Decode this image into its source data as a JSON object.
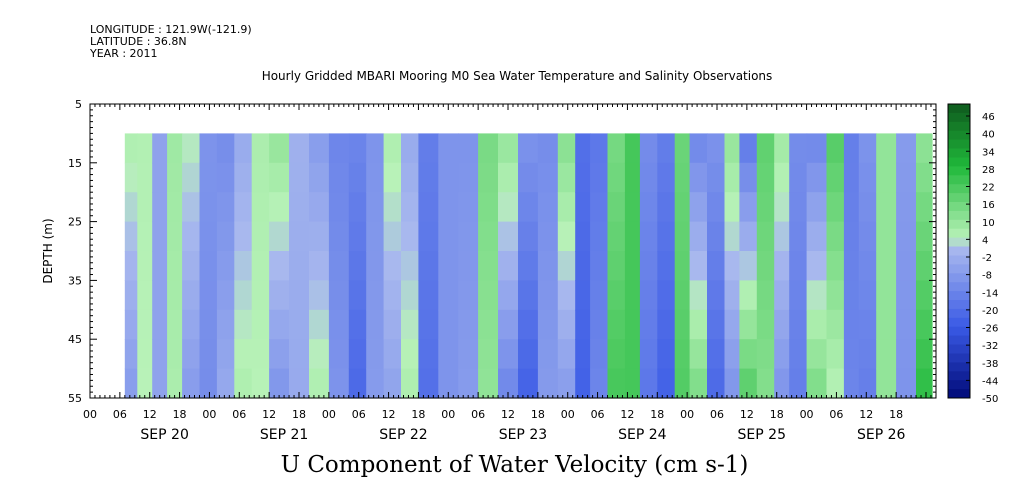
{
  "header": {
    "longitude": "LONGITUDE : 121.9W(-121.9)",
    "latitude": "LATITUDE : 36.8N",
    "year": "YEAR : 2011"
  },
  "chart_data": {
    "type": "heatmap",
    "title": "Hourly Gridded MBARI Mooring M0 Sea Water Temperature and Salinity Observations",
    "variable_label": "U Component of Water Velocity (cm s-1)",
    "ylabel": "DEPTH (m)",
    "ylim": [
      5,
      55
    ],
    "y_reversed": true,
    "y_ticks": [
      5,
      15,
      25,
      35,
      45,
      55
    ],
    "x_hour_labels": [
      "00",
      "06",
      "12",
      "18",
      "00",
      "06",
      "12",
      "18",
      "00",
      "06",
      "12",
      "18",
      "00",
      "06",
      "12",
      "18",
      "00",
      "06",
      "12",
      "18",
      "00",
      "06",
      "12",
      "18",
      "00",
      "06",
      "12",
      "18"
    ],
    "x_day_labels": [
      "SEP 20",
      "SEP 21",
      "SEP 22",
      "SEP 23",
      "SEP 24",
      "SEP 25",
      "SEP 26"
    ],
    "data_depth_range": [
      10,
      55
    ],
    "colorbar": {
      "labels": [
        "46",
        "40",
        "34",
        "28",
        "22",
        "16",
        "10",
        "4",
        "-2",
        "-8",
        "-14",
        "-20",
        "-26",
        "-32",
        "-38",
        "-44",
        "-50"
      ],
      "stops": [
        {
          "value": 49,
          "color": "#0f5a1e"
        },
        {
          "value": 28,
          "color": "#1fb83a"
        },
        {
          "value": 4,
          "color": "#b8f2b8"
        },
        {
          "value": 0,
          "color": "#a8b8ee"
        },
        {
          "value": -26,
          "color": "#3a5ae6"
        },
        {
          "value": -50,
          "color": "#000a78"
        }
      ]
    },
    "u_profile_by_time": {
      "hours_from_sep20_00": [
        2,
        5,
        8,
        11,
        14,
        18,
        21,
        25,
        28,
        32,
        36,
        40,
        44,
        48,
        51,
        55,
        58,
        62,
        66,
        70,
        74,
        78,
        82,
        86,
        90,
        93,
        96,
        100,
        103,
        106,
        110,
        113,
        116,
        120,
        123,
        126,
        130,
        133,
        136,
        140,
        144,
        147,
        150,
        154,
        158,
        162,
        166
      ],
      "surface_u": [
        6,
        5,
        -6,
        8,
        4,
        -10,
        -12,
        -4,
        6,
        10,
        -2,
        -8,
        -14,
        -14,
        -10,
        6,
        -4,
        -16,
        -10,
        -10,
        14,
        10,
        -10,
        -12,
        12,
        -20,
        -18,
        14,
        22,
        -12,
        -16,
        16,
        -14,
        -10,
        10,
        -18,
        18,
        8,
        -12,
        -14,
        20,
        -16,
        -10,
        10,
        -8,
        10,
        16
      ],
      "bottom_u": [
        -8,
        4,
        -6,
        6,
        -8,
        -12,
        -4,
        6,
        4,
        -10,
        -4,
        6,
        -10,
        -22,
        -8,
        -6,
        6,
        -20,
        -10,
        -8,
        10,
        -14,
        -24,
        -8,
        -8,
        -24,
        -14,
        22,
        22,
        -18,
        -24,
        20,
        14,
        -22,
        -10,
        20,
        12,
        -10,
        -16,
        14,
        4,
        -14,
        -16,
        10,
        -10,
        26,
        24
      ]
    }
  }
}
